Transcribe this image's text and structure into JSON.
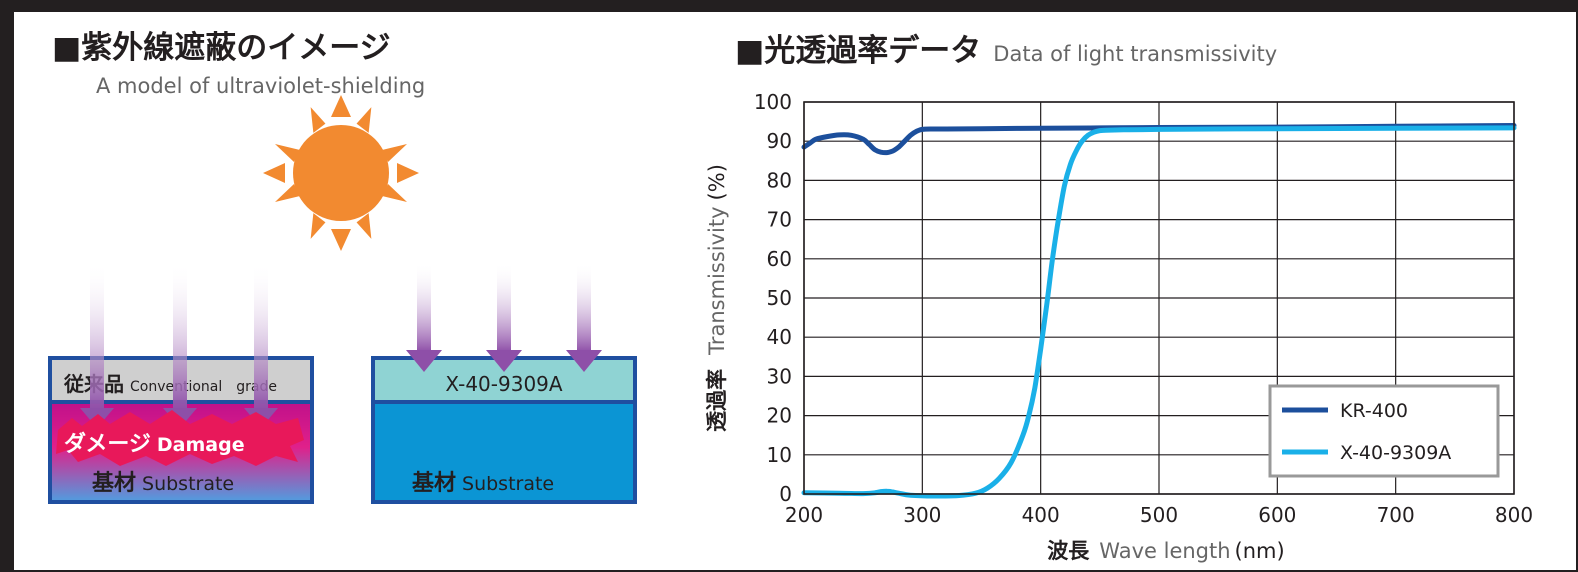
{
  "left_panel": {
    "title": "■紫外線遮蔽のイメージ",
    "subtitle": "A model of ultraviolet-shielding",
    "conventional": {
      "coating_jp": "従来品",
      "coating_en": "Conventional　grade",
      "damage_jp": "ダメージ",
      "damage_en": "Damage",
      "substrate_jp": "基材",
      "substrate_en": "Substrate"
    },
    "product": {
      "coating": "X-40-9309A",
      "substrate_jp": "基材",
      "substrate_en": "Substrate"
    },
    "colors": {
      "sun": "#f28a30",
      "arrow": "#8e4fa8",
      "box_border": "#1f4fa0",
      "conventional_coating": "#cfcfcf",
      "damage": "#d7196e",
      "product_coating": "#8fd3d3",
      "product_substrate": "#0b95d4"
    }
  },
  "chart_data": {
    "type": "line",
    "title": "■光透過率データ",
    "subtitle": "Data of light transmissivity",
    "xlabel_jp": "波長",
    "xlabel_en": "Wave length",
    "xlabel_unit": "(nm)",
    "ylabel_jp": "透過率",
    "ylabel_en": "Transmissivity",
    "ylabel_unit": "(%)",
    "xlim": [
      200,
      800
    ],
    "ylim": [
      0,
      100
    ],
    "xticks": [
      200,
      300,
      400,
      500,
      600,
      700,
      800
    ],
    "yticks": [
      0,
      10,
      20,
      30,
      40,
      50,
      60,
      70,
      80,
      90,
      100
    ],
    "grid": true,
    "legend_position": "bottom-right",
    "series": [
      {
        "name": "KR-400",
        "color": "#1c4f9c",
        "x": [
          200,
          205,
          210,
          220,
          230,
          240,
          250,
          255,
          260,
          265,
          270,
          275,
          280,
          285,
          290,
          295,
          300,
          310,
          320,
          350,
          400,
          450,
          500,
          600,
          700,
          800
        ],
        "y": [
          88.5,
          89.5,
          90.5,
          91.2,
          91.6,
          91.5,
          90.5,
          89.2,
          87.8,
          87.2,
          87.1,
          87.5,
          88.5,
          90.0,
          91.5,
          92.5,
          93.0,
          93.1,
          93.1,
          93.2,
          93.3,
          93.4,
          93.5,
          93.6,
          93.8,
          94.0
        ]
      },
      {
        "name": "X-40-9309A",
        "color": "#1ab0e8",
        "x": [
          200,
          230,
          250,
          260,
          265,
          270,
          275,
          280,
          290,
          310,
          330,
          345,
          355,
          365,
          375,
          385,
          390,
          395,
          400,
          405,
          410,
          415,
          420,
          425,
          430,
          435,
          440,
          445,
          450,
          455,
          470,
          500,
          600,
          700,
          800
        ],
        "y": [
          0.3,
          0.2,
          0.1,
          0.3,
          0.6,
          0.7,
          0.5,
          0.2,
          -0.3,
          -0.5,
          -0.4,
          0.2,
          1.5,
          4.0,
          8.0,
          15.0,
          20.0,
          27.0,
          37.0,
          48.0,
          60.0,
          70.0,
          78.5,
          84.0,
          87.5,
          90.0,
          91.5,
          92.3,
          92.7,
          92.8,
          92.9,
          93.0,
          93.2,
          93.3,
          93.4
        ]
      }
    ]
  }
}
